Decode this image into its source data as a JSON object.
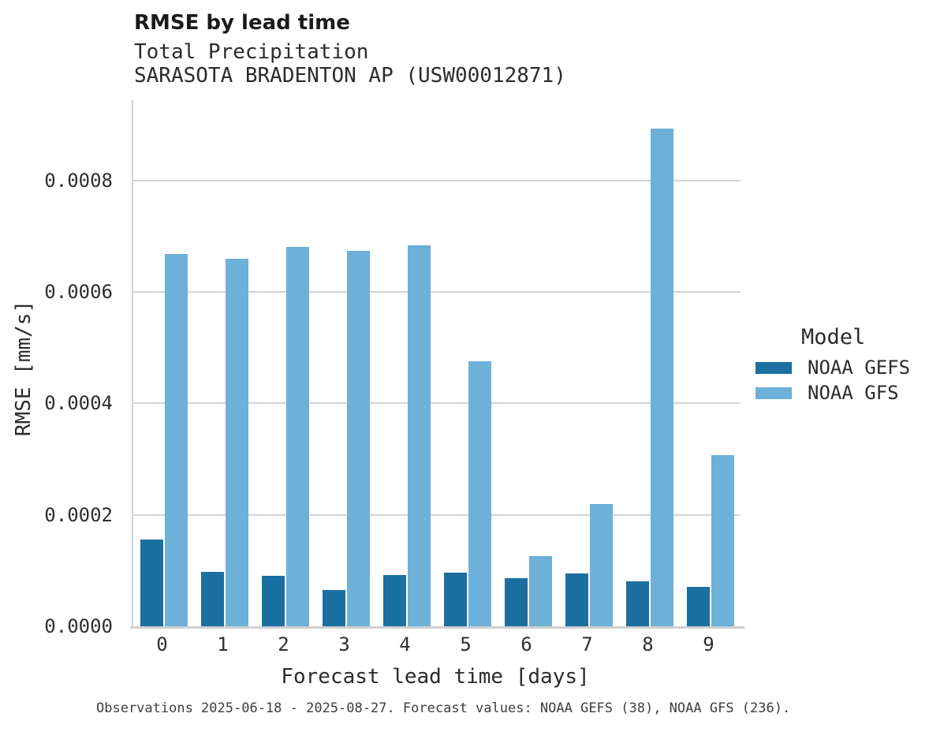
{
  "caption": "Observations 2025-06-18 - 2025-08-27. Forecast values: NOAA GEFS (38), NOAA GFS (236).",
  "colors": {
    "gefs_blue": "#1b6fa1",
    "gfs_blue": "#6db0d8",
    "gridline": "#d4d4d4",
    "axis_line": "#d0d0d0"
  },
  "chart_data": {
    "type": "bar",
    "title": "RMSE by lead time",
    "subtitle1": "Total Precipitation",
    "subtitle2": "SARASOTA BRADENTON AP (USW00012871)",
    "xlabel": "Forecast lead time [days]",
    "ylabel": "RMSE [mm/s]",
    "categories": [
      "0",
      "1",
      "2",
      "3",
      "4",
      "5",
      "6",
      "7",
      "8",
      "9"
    ],
    "series": [
      {
        "name": "NOAA GEFS",
        "color": "#1b6fa1",
        "values": [
          0.000155,
          9.7e-05,
          9e-05,
          6.5e-05,
          9.2e-05,
          9.6e-05,
          8.7e-05,
          9.5e-05,
          8.1e-05,
          7.1e-05
        ]
      },
      {
        "name": "NOAA GFS",
        "color": "#6db0d8",
        "values": [
          0.000668,
          0.000659,
          0.000681,
          0.000674,
          0.000683,
          0.000476,
          0.000126,
          0.000219,
          0.000893,
          0.000307
        ]
      }
    ],
    "ylim": [
      0,
      0.000944
    ],
    "yticks": [
      0.0,
      0.0002,
      0.0004,
      0.0006,
      0.0008
    ],
    "ytick_labels": [
      "0.0000",
      "0.0002",
      "0.0004",
      "0.0006",
      "0.0008"
    ],
    "grid": true,
    "legend_title": "Model",
    "legend_position": "right"
  }
}
